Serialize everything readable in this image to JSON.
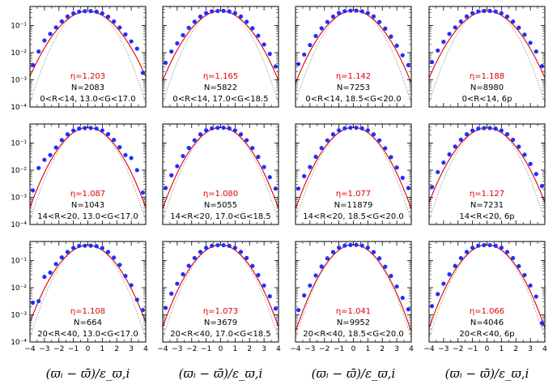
{
  "chart_data": {
    "type": "scatter",
    "layout": "3x4 grid of panels",
    "xlabel": "(ϖᵢ − ϖ̄)/ε_ϖ,i",
    "xlim": [
      -4,
      4
    ],
    "ylim": [
      0.0001,
      0.5
    ],
    "yscale": "log",
    "xticks": [
      "−4",
      "−3",
      "−2",
      "−1",
      "0",
      "1",
      "2",
      "3",
      "4"
    ],
    "yticks": [
      "10⁻⁴",
      "10⁻³",
      "10⁻²",
      "10⁻¹"
    ],
    "x": [
      -3.8,
      -3.4,
      -3.0,
      -2.6,
      -2.2,
      -1.8,
      -1.4,
      -1.0,
      -0.6,
      -0.2,
      0.2,
      0.6,
      1.0,
      1.4,
      1.8,
      2.2,
      2.6,
      3.0,
      3.4,
      3.8
    ],
    "curves": [
      {
        "name": "Gaussian fit (scaled by η)",
        "color": "#e00000",
        "style": "solid"
      },
      {
        "name": "Unit Gaussian",
        "color": "#777777",
        "style": "dotted"
      }
    ],
    "panels": [
      {
        "eta": "η=1.203",
        "n": "N=2083",
        "label": "0<R<14, 13.0<G<17.0",
        "y": [
          0.0035,
          0.011,
          0.028,
          0.049,
          0.085,
          0.142,
          0.214,
          0.28,
          0.322,
          0.335,
          0.337,
          0.322,
          0.28,
          0.21,
          0.14,
          0.084,
          0.047,
          0.026,
          0.014,
          0.0018
        ]
      },
      {
        "eta": "η=1.165",
        "n": "N=5822",
        "label": "0<R<14, 17.0<G<18.5",
        "y": [
          0.0042,
          0.011,
          0.022,
          0.044,
          0.082,
          0.138,
          0.212,
          0.285,
          0.331,
          0.341,
          0.345,
          0.328,
          0.284,
          0.214,
          0.137,
          0.079,
          0.042,
          0.02,
          0.009,
          0.0031
        ]
      },
      {
        "eta": "η=1.142",
        "n": "N=7253",
        "label": "0<R<14, 18.5<G<20.0",
        "y": [
          0.0038,
          0.0085,
          0.019,
          0.041,
          0.079,
          0.135,
          0.213,
          0.286,
          0.336,
          0.35,
          0.352,
          0.332,
          0.287,
          0.215,
          0.135,
          0.077,
          0.039,
          0.018,
          0.008,
          0.0035
        ]
      },
      {
        "eta": "η=1.188",
        "n": "N=8980",
        "label": "0<R<14, 6p",
        "y": [
          0.0045,
          0.012,
          0.025,
          0.049,
          0.085,
          0.14,
          0.215,
          0.284,
          0.329,
          0.342,
          0.343,
          0.327,
          0.283,
          0.213,
          0.139,
          0.083,
          0.046,
          0.023,
          0.011,
          0.0032
        ]
      },
      {
        "eta": "η=1.087",
        "n": "N=1043",
        "label": "14<R<20, 13.0<G<17.0",
        "y": [
          0.0018,
          0.012,
          0.024,
          0.036,
          0.068,
          0.128,
          0.208,
          0.29,
          0.34,
          0.355,
          0.356,
          0.338,
          0.29,
          0.212,
          0.13,
          0.07,
          0.036,
          0.028,
          0.01,
          0.0015
        ]
      },
      {
        "eta": "η=1.080",
        "n": "N=5055",
        "label": "14<R<20, 17.0<G<18.5",
        "y": [
          0.0022,
          0.0065,
          0.014,
          0.033,
          0.066,
          0.126,
          0.208,
          0.293,
          0.345,
          0.362,
          0.364,
          0.345,
          0.292,
          0.208,
          0.126,
          0.065,
          0.031,
          0.013,
          0.0055,
          0.0021
        ]
      },
      {
        "eta": "η=1.077",
        "n": "N=11879",
        "label": "14<R<20, 18.5<G<20.0",
        "y": [
          0.0021,
          0.006,
          0.013,
          0.031,
          0.065,
          0.125,
          0.208,
          0.293,
          0.347,
          0.363,
          0.364,
          0.346,
          0.293,
          0.208,
          0.125,
          0.064,
          0.03,
          0.0125,
          0.0052,
          0.0022
        ]
      },
      {
        "eta": "η=1.127",
        "n": "N=7231",
        "label": "14<R<20, 6p",
        "y": [
          0.0024,
          0.0085,
          0.019,
          0.038,
          0.074,
          0.132,
          0.21,
          0.288,
          0.34,
          0.352,
          0.354,
          0.336,
          0.288,
          0.21,
          0.131,
          0.073,
          0.037,
          0.017,
          0.0072,
          0.0026
        ]
      },
      {
        "eta": "η=1.108",
        "n": "N=664",
        "label": "20<R<40, 13.0<G<17.0",
        "y": [
          0.0028,
          0.0032,
          0.025,
          0.036,
          0.074,
          0.13,
          0.206,
          0.291,
          0.346,
          0.35,
          0.352,
          0.336,
          0.288,
          0.207,
          0.128,
          0.069,
          0.027,
          0.0123,
          0.0036,
          0.0015
        ]
      },
      {
        "eta": "η=1.073",
        "n": "N=3679",
        "label": "20<R<40, 17.0<G<18.5",
        "y": [
          0.0018,
          0.006,
          0.014,
          0.031,
          0.064,
          0.124,
          0.207,
          0.294,
          0.348,
          0.365,
          0.366,
          0.347,
          0.294,
          0.207,
          0.124,
          0.063,
          0.029,
          0.012,
          0.0048,
          0.0017
        ]
      },
      {
        "eta": "η=1.041",
        "n": "N=9952",
        "label": "20<R<40, 18.5<G<20.0",
        "y": [
          0.0015,
          0.0052,
          0.012,
          0.028,
          0.06,
          0.12,
          0.205,
          0.297,
          0.354,
          0.374,
          0.375,
          0.354,
          0.297,
          0.205,
          0.12,
          0.059,
          0.027,
          0.011,
          0.0042,
          0.0016
        ]
      },
      {
        "eta": "η=1.066",
        "n": "N=4046",
        "label": "20<R<40, 6p",
        "y": [
          0.0021,
          0.0058,
          0.014,
          0.031,
          0.063,
          0.123,
          0.207,
          0.295,
          0.351,
          0.367,
          0.368,
          0.349,
          0.295,
          0.206,
          0.123,
          0.062,
          0.029,
          0.012,
          0.0047,
          0.0005
        ]
      }
    ]
  }
}
